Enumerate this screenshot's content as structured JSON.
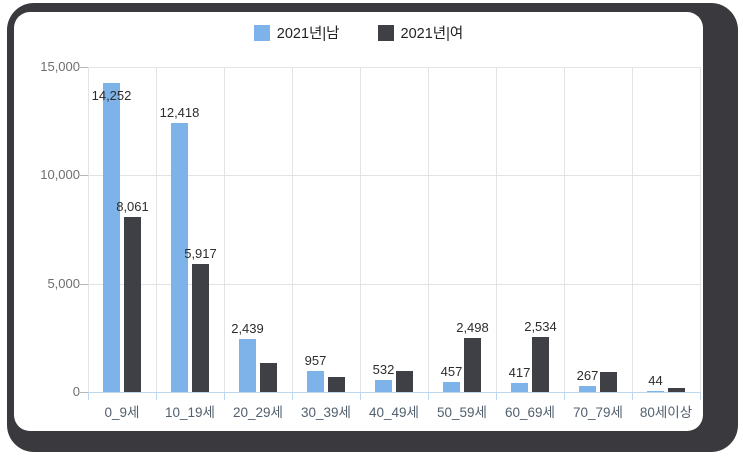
{
  "window": {
    "frame_color": "#3a3a3e",
    "card_color": "#ffffff"
  },
  "legend": {
    "items": [
      {
        "label": "2021년|남",
        "color": "#7eb3e9"
      },
      {
        "label": "2021년|여",
        "color": "#3f4045"
      }
    ]
  },
  "chart_data": {
    "type": "bar",
    "title": "",
    "categories": [
      "0_9세",
      "10_19세",
      "20_29세",
      "30_39세",
      "40_49세",
      "50_59세",
      "60_69세",
      "70_79세",
      "80세이상"
    ],
    "series": [
      {
        "name": "2021년|남",
        "color": "#7eb3e9",
        "values": [
          14252,
          12418,
          2439,
          957,
          532,
          457,
          417,
          267,
          44
        ],
        "data_labels": [
          "14,252",
          "12,418",
          "2,439",
          "957",
          "532",
          "457",
          "417",
          "267",
          "44"
        ]
      },
      {
        "name": "2021년|여",
        "color": "#3f4045",
        "values": [
          8061,
          5917,
          1350,
          700,
          970,
          2498,
          2534,
          940,
          170
        ],
        "data_labels": [
          "8,061",
          "5,917",
          "",
          "",
          "",
          "2,498",
          "2,534",
          "",
          ""
        ]
      }
    ],
    "ylim": [
      0,
      15000
    ],
    "yticks": [
      0,
      5000,
      10000,
      15000
    ],
    "ytick_labels": [
      "0",
      "5,000",
      "10,000",
      "15,000"
    ],
    "grid": true,
    "legend_position": "top",
    "axis_colors": {
      "gridline": "#e3e3e3",
      "x_axis_line": "#bdd7ee",
      "y_tick_dash": "#b7b7b7",
      "x_label_color": "#52606f",
      "y_label_color": "#6e6e6e",
      "data_label_color": "#2d2d2d"
    }
  }
}
